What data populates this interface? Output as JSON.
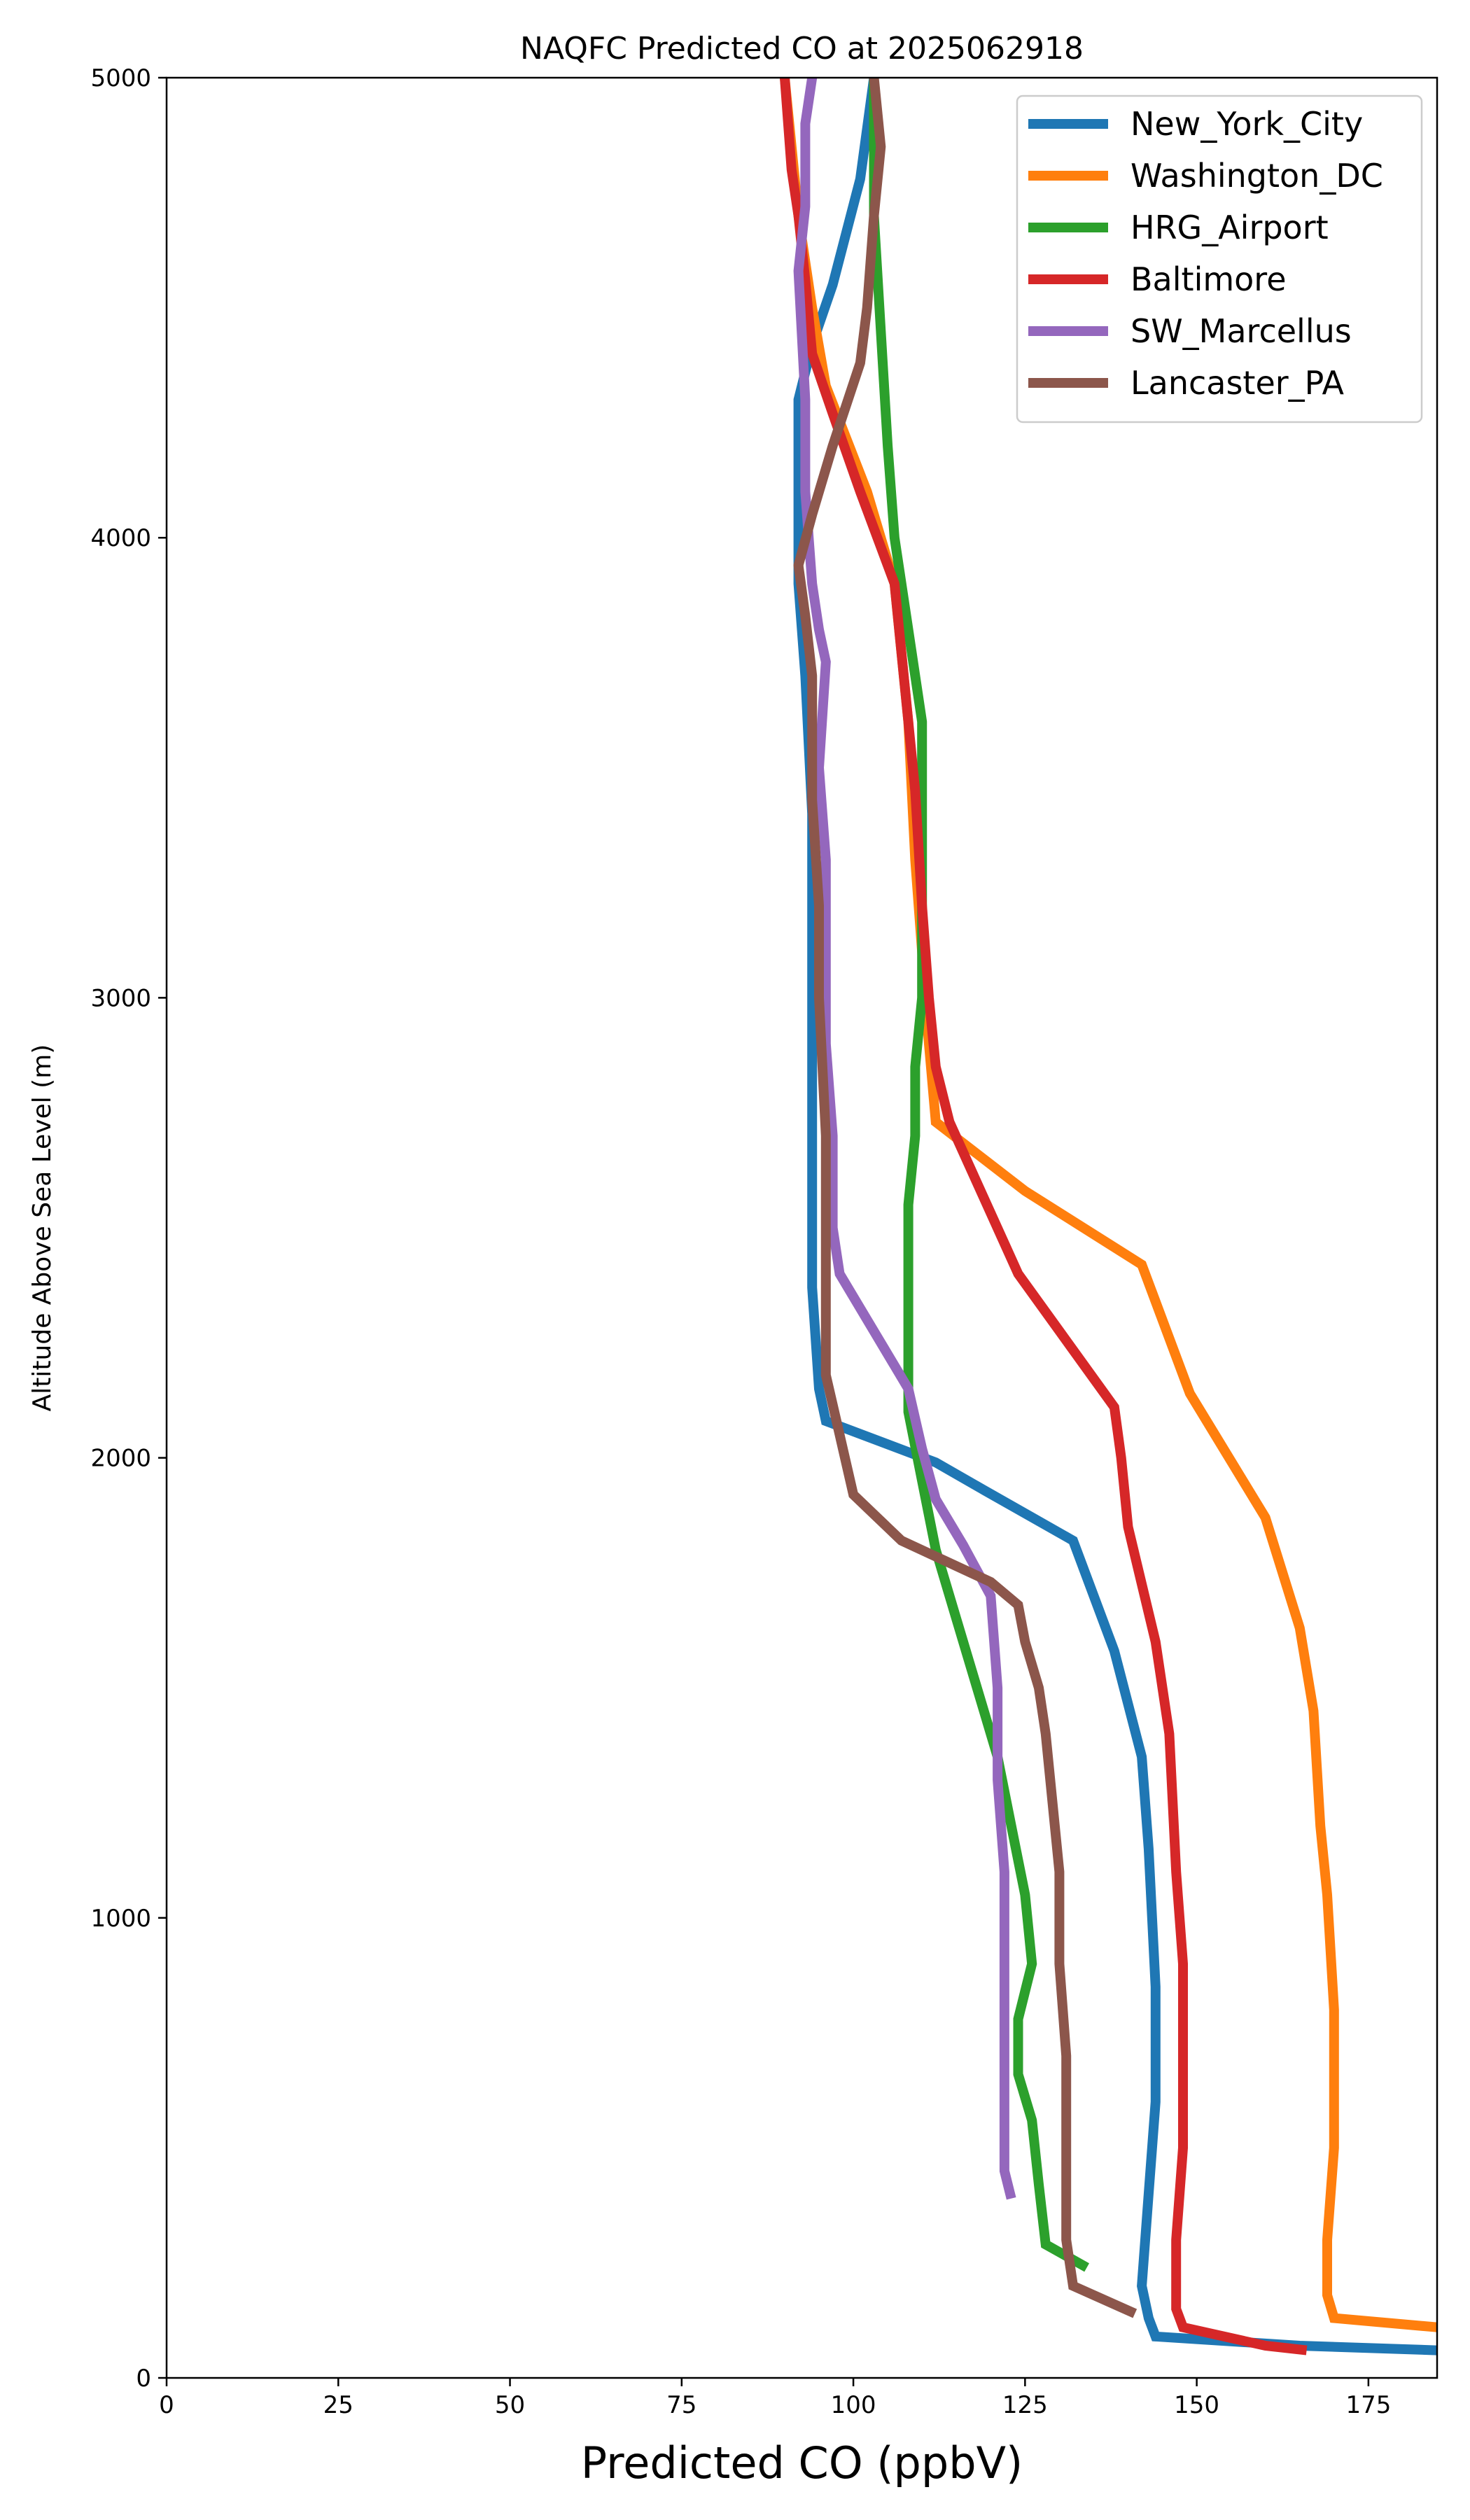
{
  "chart_data": {
    "type": "line",
    "title": "NAQFC Predicted CO at 2025062918",
    "xlabel": "Predicted CO (ppbV)",
    "ylabel": "Altitude Above Sea Level (m)",
    "xlim": [
      0,
      185
    ],
    "ylim": [
      0,
      5000
    ],
    "xticks": [
      0,
      25,
      50,
      75,
      100,
      125,
      150,
      175
    ],
    "yticks": [
      0,
      1000,
      2000,
      3000,
      4000,
      5000
    ],
    "grid": false,
    "legend_position": "top-right",
    "series": [
      {
        "name": "New_York_City",
        "color": "#1f77b4",
        "points": [
          [
            185,
            60
          ],
          [
            165,
            70
          ],
          [
            144,
            90
          ],
          [
            143,
            130
          ],
          [
            142,
            200
          ],
          [
            143,
            400
          ],
          [
            144,
            600
          ],
          [
            144,
            850
          ],
          [
            143,
            1150
          ],
          [
            142,
            1350
          ],
          [
            138,
            1580
          ],
          [
            132,
            1820
          ],
          [
            119,
            1930
          ],
          [
            112,
            1990
          ],
          [
            96,
            2080
          ],
          [
            95,
            2150
          ],
          [
            94,
            2370
          ],
          [
            94,
            2700
          ],
          [
            94,
            3000
          ],
          [
            94,
            3400
          ],
          [
            93,
            3700
          ],
          [
            92,
            3900
          ],
          [
            92,
            4300
          ],
          [
            94,
            4420
          ],
          [
            97,
            4550
          ],
          [
            101,
            4780
          ],
          [
            103,
            5000
          ]
        ]
      },
      {
        "name": "Washington_DC",
        "color": "#ff7f0e",
        "points": [
          [
            185,
            110
          ],
          [
            170,
            130
          ],
          [
            169,
            180
          ],
          [
            169,
            300
          ],
          [
            170,
            500
          ],
          [
            170,
            800
          ],
          [
            169,
            1050
          ],
          [
            168,
            1200
          ],
          [
            167,
            1450
          ],
          [
            165,
            1630
          ],
          [
            160,
            1870
          ],
          [
            149,
            2140
          ],
          [
            142,
            2420
          ],
          [
            125,
            2580
          ],
          [
            112,
            2730
          ],
          [
            111,
            2900
          ],
          [
            109,
            3300
          ],
          [
            108,
            3600
          ],
          [
            106,
            3900
          ],
          [
            102,
            4100
          ],
          [
            96,
            4330
          ],
          [
            94,
            4500
          ],
          [
            92,
            4700
          ],
          [
            91,
            4850
          ],
          [
            90,
            5000
          ]
        ]
      },
      {
        "name": "HRG_Airport",
        "color": "#2ca02c",
        "points": [
          [
            134,
            240
          ],
          [
            128,
            290
          ],
          [
            127,
            420
          ],
          [
            126,
            560
          ],
          [
            124,
            660
          ],
          [
            124,
            780
          ],
          [
            126,
            900
          ],
          [
            125,
            1050
          ],
          [
            123,
            1200
          ],
          [
            121,
            1350
          ],
          [
            118,
            1500
          ],
          [
            115,
            1650
          ],
          [
            112,
            1800
          ],
          [
            110,
            1950
          ],
          [
            108,
            2100
          ],
          [
            108,
            2270
          ],
          [
            108,
            2550
          ],
          [
            109,
            2700
          ],
          [
            109,
            2850
          ],
          [
            110,
            3000
          ],
          [
            110,
            3300
          ],
          [
            110,
            3600
          ],
          [
            108,
            3800
          ],
          [
            106,
            4000
          ],
          [
            105,
            4200
          ],
          [
            104,
            4450
          ],
          [
            103,
            4700
          ],
          [
            103,
            5000
          ]
        ]
      },
      {
        "name": "Baltimore",
        "color": "#d62728",
        "points": [
          [
            166,
            60
          ],
          [
            160,
            70
          ],
          [
            148,
            110
          ],
          [
            147,
            150
          ],
          [
            147,
            300
          ],
          [
            148,
            500
          ],
          [
            148,
            700
          ],
          [
            148,
            900
          ],
          [
            147,
            1100
          ],
          [
            146,
            1400
          ],
          [
            144,
            1600
          ],
          [
            140,
            1850
          ],
          [
            139,
            2000
          ],
          [
            138,
            2110
          ],
          [
            124,
            2400
          ],
          [
            114,
            2730
          ],
          [
            112,
            2850
          ],
          [
            111,
            3000
          ],
          [
            110,
            3200
          ],
          [
            109,
            3450
          ],
          [
            108,
            3600
          ],
          [
            106,
            3900
          ],
          [
            101,
            4100
          ],
          [
            97,
            4270
          ],
          [
            94,
            4400
          ],
          [
            93,
            4560
          ],
          [
            92,
            4700
          ],
          [
            91,
            4800
          ],
          [
            90,
            5000
          ]
        ]
      },
      {
        "name": "SW_Marcellus",
        "color": "#9467bd",
        "points": [
          [
            123,
            390
          ],
          [
            122,
            450
          ],
          [
            122,
            700
          ],
          [
            122,
            900
          ],
          [
            122,
            1100
          ],
          [
            121,
            1300
          ],
          [
            121,
            1500
          ],
          [
            120,
            1700
          ],
          [
            116,
            1810
          ],
          [
            112,
            1910
          ],
          [
            110,
            2020
          ],
          [
            108,
            2150
          ],
          [
            98,
            2400
          ],
          [
            97,
            2500
          ],
          [
            97,
            2700
          ],
          [
            96,
            2900
          ],
          [
            96,
            3100
          ],
          [
            96,
            3300
          ],
          [
            95,
            3500
          ],
          [
            96,
            3730
          ],
          [
            95,
            3800
          ],
          [
            94,
            3900
          ],
          [
            93,
            4100
          ],
          [
            93,
            4300
          ],
          [
            92,
            4580
          ],
          [
            93,
            4720
          ],
          [
            93,
            4900
          ],
          [
            94,
            5000
          ]
        ]
      },
      {
        "name": "Lancaster_PA",
        "color": "#8c564b",
        "points": [
          [
            141,
            140
          ],
          [
            132,
            200
          ],
          [
            131,
            300
          ],
          [
            131,
            500
          ],
          [
            131,
            700
          ],
          [
            130,
            900
          ],
          [
            130,
            1100
          ],
          [
            129,
            1250
          ],
          [
            128,
            1400
          ],
          [
            127,
            1500
          ],
          [
            125,
            1600
          ],
          [
            124,
            1680
          ],
          [
            120,
            1730
          ],
          [
            107,
            1820
          ],
          [
            100,
            1920
          ],
          [
            98,
            2050
          ],
          [
            96,
            2180
          ],
          [
            96,
            2400
          ],
          [
            96,
            2700
          ],
          [
            95,
            3000
          ],
          [
            95,
            3200
          ],
          [
            94,
            3430
          ],
          [
            94,
            3700
          ],
          [
            93,
            3830
          ],
          [
            92,
            3940
          ],
          [
            94,
            4050
          ],
          [
            97,
            4200
          ],
          [
            101,
            4380
          ],
          [
            102,
            4500
          ],
          [
            103,
            4700
          ],
          [
            104,
            4850
          ],
          [
            103,
            5000
          ]
        ]
      }
    ]
  }
}
